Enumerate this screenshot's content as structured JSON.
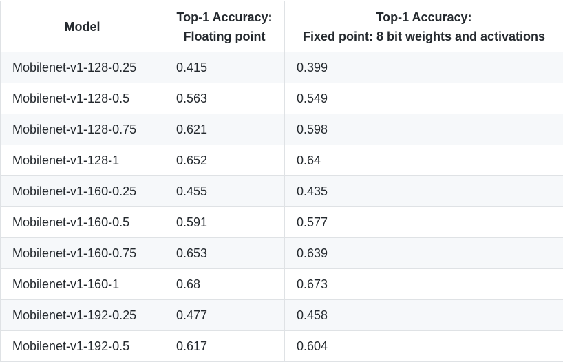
{
  "table": {
    "headers": [
      {
        "lines": [
          "Model"
        ]
      },
      {
        "lines": [
          "Top-1 Accuracy:",
          "Floating point"
        ]
      },
      {
        "lines": [
          "Top-1 Accuracy:",
          "Fixed point: 8 bit weights and activations"
        ]
      }
    ],
    "rows": [
      {
        "model": "Mobilenet-v1-128-0.25",
        "float": "0.415",
        "fixed": "0.399"
      },
      {
        "model": "Mobilenet-v1-128-0.5",
        "float": "0.563",
        "fixed": "0.549"
      },
      {
        "model": "Mobilenet-v1-128-0.75",
        "float": "0.621",
        "fixed": "0.598"
      },
      {
        "model": "Mobilenet-v1-128-1",
        "float": "0.652",
        "fixed": "0.64"
      },
      {
        "model": "Mobilenet-v1-160-0.25",
        "float": "0.455",
        "fixed": "0.435"
      },
      {
        "model": "Mobilenet-v1-160-0.5",
        "float": "0.591",
        "fixed": "0.577"
      },
      {
        "model": "Mobilenet-v1-160-0.75",
        "float": "0.653",
        "fixed": "0.639"
      },
      {
        "model": "Mobilenet-v1-160-1",
        "float": "0.68",
        "fixed": "0.673"
      },
      {
        "model": "Mobilenet-v1-192-0.25",
        "float": "0.477",
        "fixed": "0.458"
      },
      {
        "model": "Mobilenet-v1-192-0.5",
        "float": "0.617",
        "fixed": "0.604"
      }
    ]
  }
}
